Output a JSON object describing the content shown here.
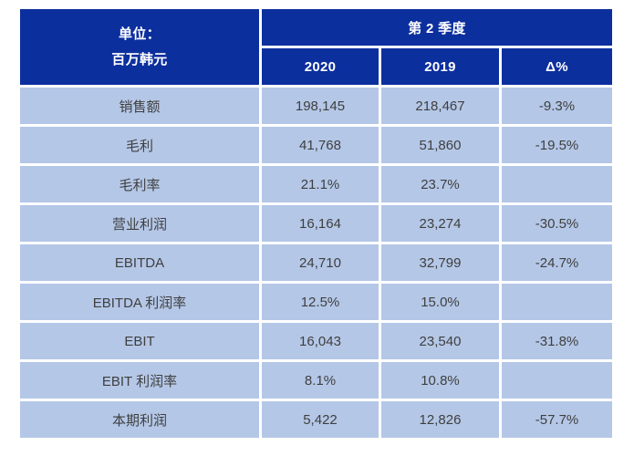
{
  "colors": {
    "page_bg": "#ffffff",
    "header_bg": "#0c2f9e",
    "header_text": "#ffffff",
    "body_bg": "#b4c7e7",
    "body_text": "#3f3f3f",
    "grid": "#ffffff"
  },
  "table": {
    "unit": {
      "line1": "单位：",
      "line2": "百万韩元"
    },
    "quarter_label": "第 2 季度",
    "columns": [
      "2020",
      "2019",
      "Δ%"
    ],
    "rows": [
      {
        "label": "销售额",
        "y2020": "198,145",
        "y2019": "218,467",
        "delta": "-9.3%"
      },
      {
        "label": "毛利",
        "y2020": "41,768",
        "y2019": "51,860",
        "delta": "-19.5%"
      },
      {
        "label": "毛利率",
        "y2020": "21.1%",
        "y2019": "23.7%",
        "delta": ""
      },
      {
        "label": "营业利润",
        "y2020": "16,164",
        "y2019": "23,274",
        "delta": "-30.5%"
      },
      {
        "label": "EBITDA",
        "y2020": "24,710",
        "y2019": "32,799",
        "delta": "-24.7%"
      },
      {
        "label": "EBITDA 利润率",
        "y2020": "12.5%",
        "y2019": "15.0%",
        "delta": ""
      },
      {
        "label": "EBIT",
        "y2020": "16,043",
        "y2019": "23,540",
        "delta": "-31.8%"
      },
      {
        "label": "EBIT 利润率",
        "y2020": "8.1%",
        "y2019": "10.8%",
        "delta": ""
      },
      {
        "label": "本期利润",
        "y2020": "5,422",
        "y2019": "12,826",
        "delta": "-57.7%"
      }
    ]
  }
}
